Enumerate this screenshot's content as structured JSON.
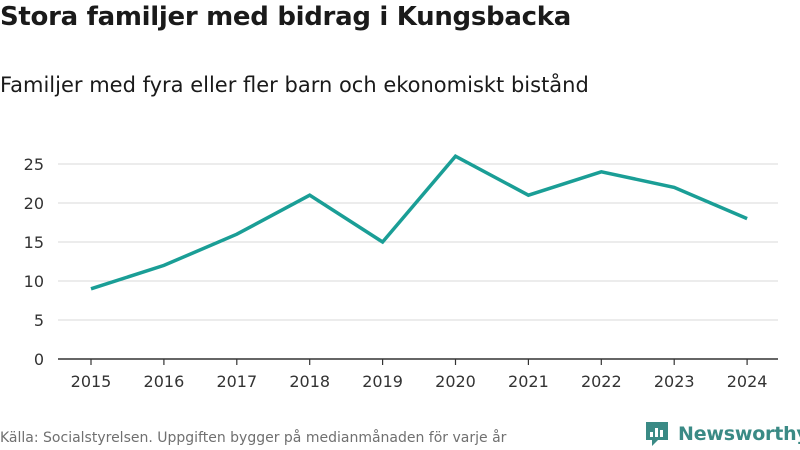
{
  "header": {
    "title": "Stora familjer med bidrag i Kungsbacka",
    "subtitle": "Familjer med fyra eller fler barn och ekonomiskt bistånd"
  },
  "footer": {
    "source": "Källa: Socialstyrelsen. Uppgiften bygger på medianmånaden för varje år",
    "brand": "Newsworthy"
  },
  "colors": {
    "line": "#1a9e96",
    "brand": "#3a8a85",
    "grid": "#d9d9d9",
    "axis": "#333333"
  },
  "chart_data": {
    "type": "line",
    "title": "Stora familjer med bidrag i Kungsbacka",
    "subtitle": "Familjer med fyra eller fler barn och ekonomiskt bistånd",
    "xlabel": "",
    "ylabel": "",
    "x": [
      "2015",
      "2016",
      "2017",
      "2018",
      "2019",
      "2020",
      "2021",
      "2022",
      "2023",
      "2024"
    ],
    "series": [
      {
        "name": "Familjer med fyra eller fler barn och ekonomiskt bistånd",
        "values": [
          9,
          12,
          16,
          21,
          15,
          26,
          21,
          24,
          22,
          18
        ]
      }
    ],
    "ylim": [
      0,
      27
    ],
    "yticks": [
      "0",
      "5",
      "10",
      "15",
      "20",
      "25"
    ],
    "grid": true,
    "legend": "none"
  }
}
